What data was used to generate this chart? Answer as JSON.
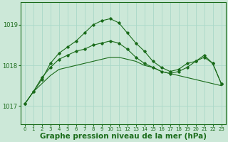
{
  "background_color": "#cce8d8",
  "grid_color": "#aad8c8",
  "line_color": "#1a6b1a",
  "xlabel": "Graphe pression niveau de la mer (hPa)",
  "xlabel_fontsize": 7.5,
  "yticks": [
    1017,
    1018,
    1019
  ],
  "xticks": [
    0,
    1,
    2,
    3,
    4,
    5,
    6,
    7,
    8,
    9,
    10,
    11,
    12,
    13,
    14,
    15,
    16,
    17,
    18,
    19,
    20,
    21,
    22,
    23
  ],
  "xlim": [
    -0.5,
    23.5
  ],
  "ylim": [
    1016.55,
    1019.55
  ],
  "series": {
    "flat": [
      1017.05,
      1017.35,
      1017.55,
      1017.75,
      1017.9,
      1017.95,
      1018.0,
      1018.05,
      1018.1,
      1018.15,
      1018.2,
      1018.2,
      1018.15,
      1018.1,
      1018.0,
      1017.95,
      1017.85,
      1017.8,
      1017.75,
      1017.7,
      1017.65,
      1017.6,
      1017.55,
      1017.5
    ],
    "mid": [
      1017.05,
      1017.35,
      1017.7,
      1017.95,
      1018.15,
      1018.25,
      1018.35,
      1018.4,
      1018.5,
      1018.55,
      1018.6,
      1018.55,
      1018.4,
      1018.2,
      1018.05,
      1017.95,
      1017.85,
      1017.8,
      1017.85,
      1017.95,
      1018.1,
      1018.2,
      1018.05,
      1017.55
    ],
    "high": [
      1017.05,
      1017.35,
      1017.65,
      1018.05,
      1018.3,
      1018.45,
      1018.6,
      1018.8,
      1019.0,
      1019.1,
      1019.15,
      1019.05,
      1018.8,
      1018.55,
      1018.35,
      1018.1,
      1017.95,
      1017.85,
      1017.9,
      1018.05,
      1018.1,
      1018.25,
      1018.05,
      1017.55
    ]
  }
}
